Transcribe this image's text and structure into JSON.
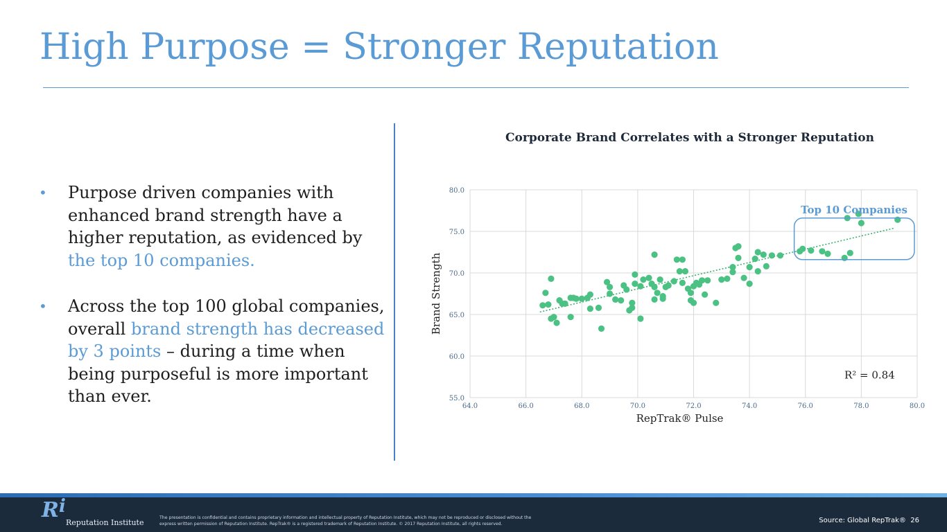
{
  "title": "High Purpose = Stronger Reputation",
  "bullets": [
    {
      "parts": [
        {
          "text": "Purpose driven companies with enhanced brand strength have a higher reputation, as evidenced by ",
          "highlight": false
        },
        {
          "text": "the top 10 companies.",
          "highlight": true
        }
      ]
    },
    {
      "parts": [
        {
          "text": "Across the top 100 global companies, overall ",
          "highlight": false
        },
        {
          "text": "brand strength has decreased by 3 points",
          "highlight": true
        },
        {
          "text": " – during a time when being purposeful is more important than ever.",
          "highlight": false
        }
      ]
    }
  ],
  "colors": {
    "accent": "#5b9bd5",
    "points": "#4cc184",
    "trend": "#3cae70",
    "highlight_box": "#5b9bd5"
  },
  "chart_data": {
    "type": "scatter",
    "title": "Corporate Brand Correlates with a Stronger Reputation",
    "xlabel": "RepTrak® Pulse",
    "ylabel": "Brand Strength",
    "xlim": [
      64.0,
      80.0
    ],
    "ylim": [
      55.0,
      80.0
    ],
    "xticks": [
      "64.0",
      "66.0",
      "68.0",
      "70.0",
      "72.0",
      "74.0",
      "76.0",
      "78.0",
      "80.0"
    ],
    "yticks": [
      "55.0",
      "60.0",
      "65.0",
      "70.0",
      "75.0",
      "80.0"
    ],
    "grid": true,
    "annotation": "R² = 0.84",
    "highlight_label": "Top 10 Companies",
    "highlight_range": {
      "x": [
        75.6,
        79.9
      ],
      "y": [
        71.6,
        76.6
      ]
    },
    "trendline": {
      "x": [
        66.5,
        79.2
      ],
      "y": [
        65.3,
        75.4
      ]
    },
    "points": [
      [
        66.6,
        66.1
      ],
      [
        66.7,
        67.6
      ],
      [
        66.8,
        66.2
      ],
      [
        66.9,
        69.3
      ],
      [
        66.9,
        64.5
      ],
      [
        67.0,
        64.7
      ],
      [
        67.1,
        64.0
      ],
      [
        67.2,
        66.7
      ],
      [
        67.3,
        66.3
      ],
      [
        67.4,
        66.3
      ],
      [
        67.6,
        67.0
      ],
      [
        67.6,
        64.7
      ],
      [
        67.7,
        67.0
      ],
      [
        67.8,
        66.9
      ],
      [
        68.0,
        66.9
      ],
      [
        68.2,
        67.0
      ],
      [
        68.3,
        67.4
      ],
      [
        68.3,
        65.7
      ],
      [
        68.6,
        65.8
      ],
      [
        68.7,
        63.3
      ],
      [
        68.9,
        68.9
      ],
      [
        69.0,
        68.3
      ],
      [
        69.0,
        67.5
      ],
      [
        69.2,
        66.8
      ],
      [
        69.4,
        66.7
      ],
      [
        69.5,
        68.5
      ],
      [
        69.6,
        68.0
      ],
      [
        69.7,
        65.5
      ],
      [
        69.8,
        66.4
      ],
      [
        69.8,
        65.8
      ],
      [
        69.9,
        68.7
      ],
      [
        69.9,
        69.8
      ],
      [
        70.1,
        64.5
      ],
      [
        70.1,
        68.4
      ],
      [
        70.2,
        69.2
      ],
      [
        70.4,
        69.4
      ],
      [
        70.5,
        68.7
      ],
      [
        70.6,
        68.3
      ],
      [
        70.6,
        72.2
      ],
      [
        70.6,
        66.8
      ],
      [
        70.7,
        67.6
      ],
      [
        70.8,
        69.2
      ],
      [
        70.9,
        67.2
      ],
      [
        70.9,
        66.9
      ],
      [
        71.0,
        68.3
      ],
      [
        71.1,
        68.5
      ],
      [
        71.3,
        69.0
      ],
      [
        71.4,
        71.6
      ],
      [
        71.5,
        70.2
      ],
      [
        71.6,
        71.6
      ],
      [
        71.6,
        68.8
      ],
      [
        71.7,
        70.2
      ],
      [
        71.8,
        68.1
      ],
      [
        71.9,
        67.6
      ],
      [
        71.9,
        66.7
      ],
      [
        72.0,
        66.4
      ],
      [
        72.0,
        68.4
      ],
      [
        72.1,
        68.8
      ],
      [
        72.2,
        68.6
      ],
      [
        72.3,
        69.1
      ],
      [
        72.4,
        67.4
      ],
      [
        72.5,
        69.1
      ],
      [
        72.8,
        66.4
      ],
      [
        73.0,
        69.2
      ],
      [
        73.2,
        69.3
      ],
      [
        73.4,
        70.7
      ],
      [
        73.4,
        70.1
      ],
      [
        73.5,
        73.0
      ],
      [
        73.6,
        71.8
      ],
      [
        73.6,
        73.2
      ],
      [
        73.8,
        69.4
      ],
      [
        74.0,
        70.7
      ],
      [
        74.0,
        68.7
      ],
      [
        74.2,
        71.7
      ],
      [
        74.3,
        72.5
      ],
      [
        74.3,
        70.2
      ],
      [
        74.5,
        72.2
      ],
      [
        74.6,
        70.8
      ],
      [
        74.8,
        72.1
      ],
      [
        75.1,
        72.1
      ],
      [
        75.8,
        72.6
      ],
      [
        75.9,
        72.9
      ],
      [
        76.2,
        72.7
      ],
      [
        76.6,
        72.6
      ],
      [
        76.8,
        72.3
      ],
      [
        77.4,
        71.8
      ],
      [
        77.5,
        76.6
      ],
      [
        77.6,
        72.4
      ],
      [
        77.9,
        77.1
      ],
      [
        78.0,
        76.0
      ],
      [
        79.3,
        76.4
      ]
    ]
  },
  "footer": {
    "logo_mark": "R",
    "logo_mark_i": "i",
    "logo_text": "Reputation Institute",
    "disclaimer": "The presentation is confidential and contains proprietary information and intellectual property of Reputation Institute, which may not be reproduced or disclosed without the express written permission of Reputation Institute. RepTrak® is a registered trademark of Reputation Institute. © 2017 Reputation Institute, all rights reserved.",
    "source": "Source: Global RepTrak®",
    "page_number": "26"
  }
}
